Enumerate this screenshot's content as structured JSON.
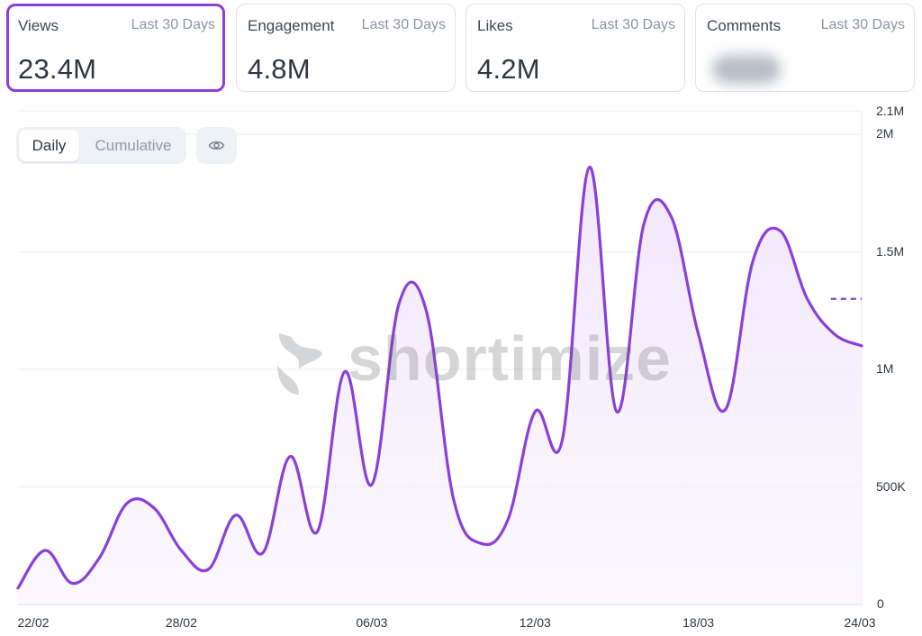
{
  "stat_cards": [
    {
      "title": "Views",
      "period": "Last 30 Days",
      "value": "23.4M",
      "active": true
    },
    {
      "title": "Engagement",
      "period": "Last 30 Days",
      "value": "4.8M",
      "active": false
    },
    {
      "title": "Likes",
      "period": "Last 30 Days",
      "value": "4.2M",
      "active": false
    },
    {
      "title": "Comments",
      "period": "Last 30 Days",
      "value": "",
      "active": false,
      "blurred": true
    }
  ],
  "toggle": {
    "daily_label": "Daily",
    "cumulative_label": "Cumulative",
    "selected": "Daily"
  },
  "visibility_button": {
    "icon": "eye-icon"
  },
  "watermark": {
    "text": "shortimize"
  },
  "colors": {
    "accent": "#8a3fd8",
    "fill": "#f6effd",
    "grid": "#eceef2",
    "text": "#2f3642",
    "muted": "#8d95a1"
  },
  "chart_data": {
    "type": "area",
    "metric": "Views",
    "x": [
      "22/02",
      "23/02",
      "24/02",
      "25/02",
      "26/02",
      "27/02",
      "28/02",
      "29/02",
      "01/03",
      "02/03",
      "03/03",
      "04/03",
      "05/03",
      "06/03",
      "07/03",
      "08/03",
      "09/03",
      "10/03",
      "11/03",
      "12/03",
      "13/03",
      "14/03",
      "15/03",
      "16/03",
      "17/03",
      "18/03",
      "19/03",
      "20/03",
      "21/03",
      "22/03",
      "23/03",
      "24/03"
    ],
    "values": [
      70000,
      230000,
      90000,
      200000,
      430000,
      410000,
      230000,
      150000,
      380000,
      220000,
      630000,
      310000,
      990000,
      510000,
      1280000,
      1250000,
      450000,
      260000,
      360000,
      820000,
      700000,
      1860000,
      820000,
      1620000,
      1650000,
      1150000,
      830000,
      1460000,
      1590000,
      1300000,
      1150000,
      1100000
    ],
    "projected_value": 1300000,
    "y_ticks": [
      "0",
      "500K",
      "1M",
      "1.5M",
      "2M",
      "2.1M"
    ],
    "y_tick_values": [
      0,
      500000,
      1000000,
      1500000,
      2000000,
      2100000
    ],
    "x_tick_labels": [
      "22/02",
      "28/02",
      "06/03",
      "12/03",
      "18/03",
      "24/03"
    ],
    "ylim": [
      0,
      2100000
    ],
    "grid": true,
    "y_axis_position": "right"
  }
}
